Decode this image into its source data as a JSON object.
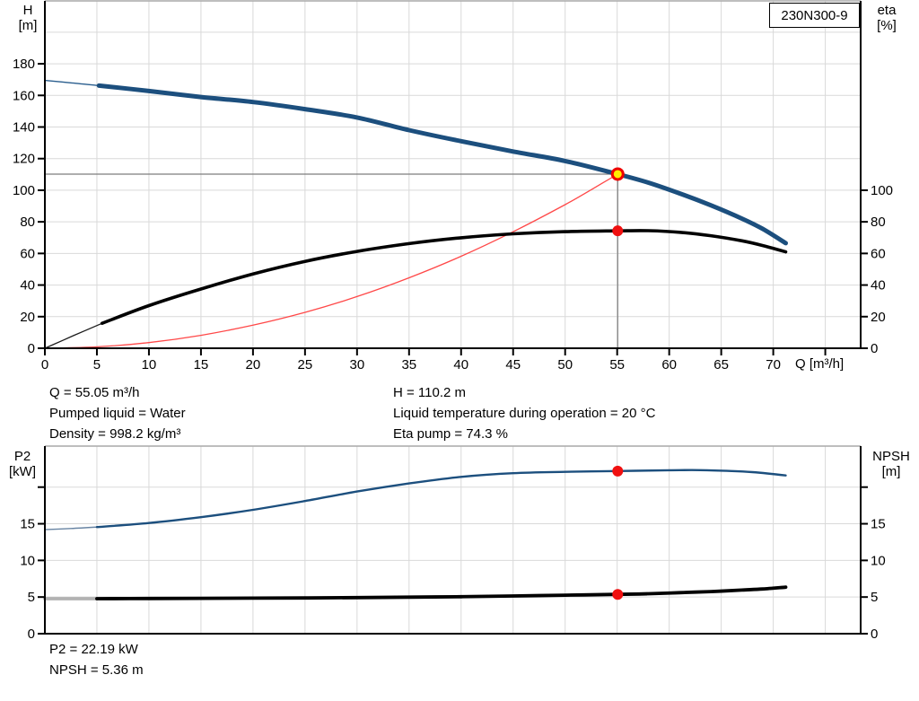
{
  "pump_model": "230N300-9",
  "axis_titles": {
    "h": [
      "H",
      "[m]"
    ],
    "eta": [
      "eta",
      "[%]"
    ],
    "q": "Q [m³/h]",
    "p2": [
      "P2",
      "[kW]"
    ],
    "npsh": [
      "NPSH",
      "[m]"
    ]
  },
  "info_panel": {
    "q": "Q = 55.05 m³/h",
    "pumped_liquid": "Pumped liquid = Water",
    "density": "Density = 998.2 kg/m³",
    "h": "H = 110.2 m",
    "liquid_temp": "Liquid temperature during operation = 20 °C",
    "eta_pump": "Eta pump = 74.3 %"
  },
  "result_panel": {
    "p2": "P2 = 22.19 kW",
    "npsh": "NPSH = 5.36 m"
  },
  "colors": {
    "head_curve": "#1c4f7e",
    "efficiency_curve": "#000000",
    "system_curve": "#ff4848",
    "p2_curve": "#1c4f7e",
    "npsh_curve": "#000000",
    "grid": "#d9d9d9",
    "grid_top": "#a9a9a9",
    "axis": "#000000",
    "ref_line": "#7d7d7d",
    "duty_fill": "#ffec00",
    "duty_ring": "#ee0000",
    "dot": "#f01010"
  },
  "chart_data": [
    {
      "type": "line",
      "title": "230N300-9",
      "xlabel": "Q [m³/h]",
      "ylabel_left": "H [m]",
      "ylabel_right": "eta [%]",
      "xlim": [
        0,
        78.4
      ],
      "ylim_left": [
        0,
        219.8
      ],
      "ylim_right": [
        0,
        219.8
      ],
      "grid": true,
      "grid_x": [
        5,
        10,
        15,
        20,
        25,
        30,
        35,
        40,
        45,
        50,
        55,
        60,
        65,
        70,
        75
      ],
      "grid_y": [
        20,
        40,
        60,
        80,
        100,
        120,
        140,
        160,
        180,
        200
      ],
      "x_ticks": [
        {
          "v": 0,
          "label": "0"
        },
        {
          "v": 5,
          "label": "5"
        },
        {
          "v": 10,
          "label": "10"
        },
        {
          "v": 15,
          "label": "15"
        },
        {
          "v": 20,
          "label": "20"
        },
        {
          "v": 25,
          "label": "25"
        },
        {
          "v": 30,
          "label": "30"
        },
        {
          "v": 35,
          "label": "35"
        },
        {
          "v": 40,
          "label": "40"
        },
        {
          "v": 45,
          "label": "45"
        },
        {
          "v": 50,
          "label": "50"
        },
        {
          "v": 55,
          "label": "55"
        },
        {
          "v": 60,
          "label": "60"
        },
        {
          "v": 65,
          "label": "65"
        },
        {
          "v": 70,
          "label": "70"
        },
        {
          "v": 75,
          "label": ""
        }
      ],
      "y_ticks_left": [
        {
          "v": 0,
          "label": "0"
        },
        {
          "v": 20,
          "label": "20"
        },
        {
          "v": 40,
          "label": "40"
        },
        {
          "v": 60,
          "label": "60"
        },
        {
          "v": 80,
          "label": "80"
        },
        {
          "v": 100,
          "label": "100"
        },
        {
          "v": 120,
          "label": "120"
        },
        {
          "v": 140,
          "label": "140"
        },
        {
          "v": 160,
          "label": "160"
        },
        {
          "v": 180,
          "label": "180"
        }
      ],
      "y_ticks_right": [
        {
          "v": 0,
          "label": "0"
        },
        {
          "v": 20,
          "label": "20"
        },
        {
          "v": 40,
          "label": "40"
        },
        {
          "v": 60,
          "label": "60"
        },
        {
          "v": 80,
          "label": "80"
        },
        {
          "v": 100,
          "label": "100"
        }
      ],
      "ref_lines": [
        {
          "dir": "h",
          "at": 110.2,
          "x1": 0,
          "x2": 55.05
        },
        {
          "dir": "v",
          "at": 55.05,
          "y1": 0,
          "y2": 110.2
        }
      ],
      "series": [
        {
          "name": "system-curve",
          "color": "#ff4848",
          "width": 1.3,
          "points": [
            [
              0,
              0
            ],
            [
              5,
              0.9
            ],
            [
              10,
              3.6
            ],
            [
              15,
              8.2
            ],
            [
              20,
              14.6
            ],
            [
              25,
              22.7
            ],
            [
              30,
              32.7
            ],
            [
              35,
              44.6
            ],
            [
              40,
              58.2
            ],
            [
              45,
              73.7
            ],
            [
              50,
              90.9
            ],
            [
              52.5,
              100.3
            ],
            [
              55.05,
              110.2
            ]
          ]
        },
        {
          "name": "efficiency-curve-lead",
          "color": "#1a1a1a",
          "width": 1.3,
          "points": [
            [
              0,
              0
            ],
            [
              2.75,
              8
            ],
            [
              5.5,
              15.8
            ]
          ]
        },
        {
          "name": "efficiency-curve",
          "color": "#000000",
          "width": 3.6,
          "points": [
            [
              5.5,
              15.8
            ],
            [
              10,
              27
            ],
            [
              15,
              37.5
            ],
            [
              20,
              47
            ],
            [
              25,
              55
            ],
            [
              30,
              61.3
            ],
            [
              35,
              66.2
            ],
            [
              40,
              69.9
            ],
            [
              45,
              72.4
            ],
            [
              50,
              73.8
            ],
            [
              55.05,
              74.3
            ],
            [
              58,
              74.4
            ],
            [
              61,
              73.4
            ],
            [
              64,
              71.2
            ],
            [
              67,
              68
            ],
            [
              69,
              65
            ],
            [
              71.2,
              61
            ]
          ]
        },
        {
          "name": "head-curve-lead",
          "color": "#2a5e8e",
          "width": 1.4,
          "points": [
            [
              0,
              169.5
            ],
            [
              2.6,
              167.9
            ],
            [
              5.2,
              166.2
            ]
          ]
        },
        {
          "name": "head-curve",
          "color": "#1c4f7e",
          "width": 5,
          "points": [
            [
              5.2,
              166.2
            ],
            [
              10,
              162.8
            ],
            [
              15,
              159
            ],
            [
              20,
              155.8
            ],
            [
              25,
              151.3
            ],
            [
              30,
              146
            ],
            [
              35,
              138
            ],
            [
              40,
              131
            ],
            [
              45,
              124.5
            ],
            [
              50,
              118.5
            ],
            [
              55.05,
              110.2
            ],
            [
              58,
              104.8
            ],
            [
              61,
              98
            ],
            [
              64,
              90.5
            ],
            [
              67,
              82
            ],
            [
              69,
              75.5
            ],
            [
              71.2,
              66.5
            ]
          ]
        }
      ],
      "markers": [
        {
          "name": "duty-point-marker",
          "x": 55.05,
          "y": 110.2,
          "style": "duty"
        },
        {
          "name": "efficiency-point-marker",
          "x": 55.05,
          "y": 74.3,
          "style": "dot"
        }
      ],
      "duty_point": {
        "q": 55.05,
        "h": 110.2,
        "eta": 74.3
      }
    },
    {
      "type": "line",
      "title": "Power and NPSH curves",
      "xlabel": "",
      "ylabel_left": "P2 [kW]",
      "ylabel_right": "NPSH [m]",
      "xlim": [
        0,
        78.4
      ],
      "ylim_left": [
        0,
        25.6
      ],
      "ylim_right": [
        0,
        25.6
      ],
      "grid": true,
      "grid_x": [
        5,
        10,
        15,
        20,
        25,
        30,
        35,
        40,
        45,
        50,
        55,
        60,
        65,
        70,
        75
      ],
      "grid_y": [
        5,
        10,
        15,
        20
      ],
      "x_ticks": [],
      "y_ticks_left": [
        {
          "v": 0,
          "label": "0"
        },
        {
          "v": 5,
          "label": "5"
        },
        {
          "v": 10,
          "label": "10"
        },
        {
          "v": 15,
          "label": "15"
        },
        {
          "v": 20,
          "label": ""
        }
      ],
      "y_ticks_right": [
        {
          "v": 0,
          "label": "0"
        },
        {
          "v": 5,
          "label": "5"
        },
        {
          "v": 10,
          "label": "10"
        },
        {
          "v": 15,
          "label": "15"
        },
        {
          "v": 20,
          "label": ""
        }
      ],
      "ref_lines": [],
      "series": [
        {
          "name": "p2-curve-lead",
          "color": "#6884a3",
          "width": 1.4,
          "points": [
            [
              0,
              14.2
            ],
            [
              2.5,
              14.35
            ],
            [
              5,
              14.55
            ]
          ]
        },
        {
          "name": "p2-curve",
          "color": "#1c4f7e",
          "width": 2.4,
          "points": [
            [
              5,
              14.55
            ],
            [
              10,
              15.1
            ],
            [
              15,
              15.9
            ],
            [
              20,
              16.9
            ],
            [
              25,
              18.1
            ],
            [
              30,
              19.4
            ],
            [
              35,
              20.5
            ],
            [
              40,
              21.4
            ],
            [
              45,
              21.9
            ],
            [
              50,
              22.08
            ],
            [
              55.05,
              22.19
            ],
            [
              60,
              22.3
            ],
            [
              63,
              22.32
            ],
            [
              66,
              22.2
            ],
            [
              68,
              22.05
            ],
            [
              71.2,
              21.6
            ]
          ]
        },
        {
          "name": "npsh-curve-lead",
          "color": "#b2b2b2",
          "width": 3.8,
          "points": [
            [
              0,
              4.78
            ],
            [
              5,
              4.78
            ]
          ]
        },
        {
          "name": "npsh-curve",
          "color": "#000000",
          "width": 3.8,
          "points": [
            [
              5,
              4.78
            ],
            [
              10,
              4.8
            ],
            [
              15,
              4.82
            ],
            [
              20,
              4.85
            ],
            [
              25,
              4.88
            ],
            [
              30,
              4.92
            ],
            [
              35,
              4.98
            ],
            [
              40,
              5.05
            ],
            [
              45,
              5.15
            ],
            [
              50,
              5.25
            ],
            [
              55.05,
              5.36
            ],
            [
              58,
              5.45
            ],
            [
              61,
              5.6
            ],
            [
              64,
              5.75
            ],
            [
              67,
              5.95
            ],
            [
              69,
              6.1
            ],
            [
              71.2,
              6.35
            ]
          ]
        }
      ],
      "markers": [
        {
          "name": "p2-point-marker",
          "x": 55.05,
          "y": 22.19,
          "style": "dot"
        },
        {
          "name": "npsh-point-marker",
          "x": 55.05,
          "y": 5.36,
          "style": "dot"
        }
      ],
      "duty_point": {
        "q": 55.05,
        "p2": 22.19,
        "npsh": 5.36
      }
    }
  ]
}
